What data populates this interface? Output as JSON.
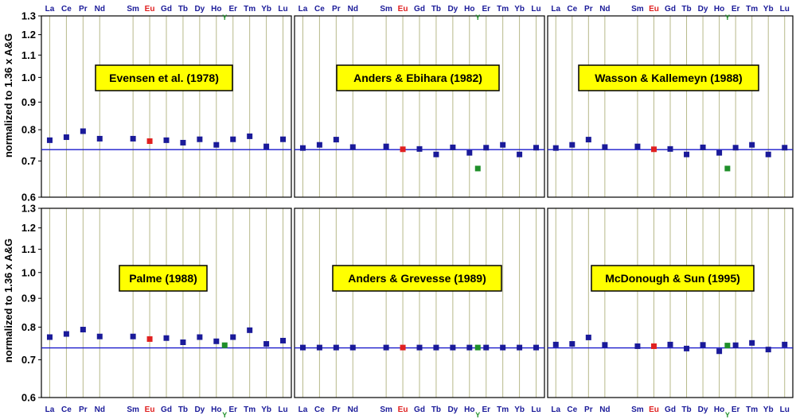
{
  "ylabel": "normalized to 1.36 x A&G",
  "ref_value": 0.735,
  "colors": {
    "frame": "#000000",
    "gridline": "#b7b98a",
    "reference_line": "#1a1acc",
    "marker_default": "#1a1a99",
    "marker_eu": "#e02020",
    "marker_y": "#1f8f2a",
    "tick_label": "#1a1a99",
    "eu_label": "#e02020",
    "y_label": "#1f8f2a",
    "title_box_fill": "#ffff00",
    "title_box_border": "#000000"
  },
  "chart_data": [
    {
      "type": "scatter",
      "title": "Evensen et al. (1978)",
      "categories": [
        "La",
        "Ce",
        "Pr",
        "Nd",
        "Sm",
        "Eu",
        "Gd",
        "Tb",
        "Dy",
        "Ho",
        "Er",
        "Tm",
        "Yb",
        "Lu"
      ],
      "values": [
        0.765,
        0.775,
        0.795,
        0.77,
        0.77,
        0.762,
        0.765,
        0.757,
        0.768,
        0.75,
        0.768,
        0.778,
        0.745,
        0.768
      ],
      "y_marker": null,
      "ylim": [
        0.6,
        1.3
      ],
      "yscale": "log",
      "yticks": [
        0.6,
        0.7,
        0.8,
        0.9,
        1.0,
        1.1,
        1.2,
        1.3
      ],
      "ytick_labels": [
        "0.6",
        "0.7",
        "0.8",
        "0.9",
        "1.0",
        "1.1",
        "1.2",
        "1.3"
      ],
      "reference_line": 0.735,
      "grid": true,
      "xlabel_position": "top"
    },
    {
      "type": "scatter",
      "title": "Anders & Ebihara (1982)",
      "categories": [
        "La",
        "Ce",
        "Pr",
        "Nd",
        "Sm",
        "Eu",
        "Gd",
        "Tb",
        "Dy",
        "Ho",
        "Er",
        "Tm",
        "Yb",
        "Lu"
      ],
      "values": [
        0.74,
        0.75,
        0.767,
        0.743,
        0.745,
        0.736,
        0.737,
        0.72,
        0.742,
        0.725,
        0.741,
        0.75,
        0.72,
        0.741
      ],
      "y_marker": 0.678,
      "ylim": [
        0.6,
        1.3
      ],
      "yscale": "log",
      "yticks": [
        0.6,
        0.7,
        0.8,
        0.9,
        1.0,
        1.1,
        1.2,
        1.3
      ],
      "ytick_labels": [
        "0.6",
        "0.7",
        "0.8",
        "0.9",
        "1.0",
        "1.1",
        "1.2",
        "1.3"
      ],
      "reference_line": 0.735,
      "grid": true,
      "xlabel_position": "top"
    },
    {
      "type": "scatter",
      "title": "Wasson & Kallemeyn (1988)",
      "categories": [
        "La",
        "Ce",
        "Pr",
        "Nd",
        "Sm",
        "Eu",
        "Gd",
        "Tb",
        "Dy",
        "Ho",
        "Er",
        "Tm",
        "Yb",
        "Lu"
      ],
      "values": [
        0.74,
        0.75,
        0.767,
        0.743,
        0.745,
        0.736,
        0.737,
        0.72,
        0.742,
        0.725,
        0.741,
        0.75,
        0.72,
        0.741
      ],
      "y_marker": 0.678,
      "ylim": [
        0.6,
        1.3
      ],
      "yscale": "log",
      "yticks": [
        0.6,
        0.7,
        0.8,
        0.9,
        1.0,
        1.1,
        1.2,
        1.3
      ],
      "ytick_labels": [
        "0.6",
        "0.7",
        "0.8",
        "0.9",
        "1.0",
        "1.1",
        "1.2",
        "1.3"
      ],
      "reference_line": 0.735,
      "grid": true,
      "xlabel_position": "top"
    },
    {
      "type": "scatter",
      "title": "Palme (1988)",
      "categories": [
        "La",
        "Ce",
        "Pr",
        "Nd",
        "Sm",
        "Eu",
        "Gd",
        "Tb",
        "Dy",
        "Ho",
        "Er",
        "Tm",
        "Yb",
        "Lu"
      ],
      "values": [
        0.768,
        0.778,
        0.792,
        0.77,
        0.77,
        0.762,
        0.765,
        0.752,
        0.768,
        0.755,
        0.768,
        0.79,
        0.747,
        0.757
      ],
      "y_marker": 0.743,
      "ylim": [
        0.6,
        1.3
      ],
      "yscale": "log",
      "yticks": [
        0.6,
        0.7,
        0.8,
        0.9,
        1.0,
        1.1,
        1.2,
        1.3
      ],
      "ytick_labels": [
        "0.6",
        "0.7",
        "0.8",
        "0.9",
        "1.0",
        "1.1",
        "1.2",
        "1.3"
      ],
      "reference_line": 0.735,
      "grid": true,
      "xlabel_position": "bottom"
    },
    {
      "type": "scatter",
      "title": "Anders & Grevesse (1989)",
      "categories": [
        "La",
        "Ce",
        "Pr",
        "Nd",
        "Sm",
        "Eu",
        "Gd",
        "Tb",
        "Dy",
        "Ho",
        "Er",
        "Tm",
        "Yb",
        "Lu"
      ],
      "values": [
        0.736,
        0.736,
        0.736,
        0.736,
        0.736,
        0.736,
        0.736,
        0.736,
        0.736,
        0.736,
        0.736,
        0.736,
        0.736,
        0.736
      ],
      "y_marker": 0.736,
      "ylim": [
        0.6,
        1.3
      ],
      "yscale": "log",
      "yticks": [
        0.6,
        0.7,
        0.8,
        0.9,
        1.0,
        1.1,
        1.2,
        1.3
      ],
      "ytick_labels": [
        "0.6",
        "0.7",
        "0.8",
        "0.9",
        "1.0",
        "1.1",
        "1.2",
        "1.3"
      ],
      "reference_line": 0.735,
      "grid": true,
      "xlabel_position": "bottom"
    },
    {
      "type": "scatter",
      "title": "McDonough & Sun (1995)",
      "categories": [
        "La",
        "Ce",
        "Pr",
        "Nd",
        "Sm",
        "Eu",
        "Gd",
        "Tb",
        "Dy",
        "Ho",
        "Er",
        "Tm",
        "Yb",
        "Lu"
      ],
      "values": [
        0.745,
        0.747,
        0.767,
        0.744,
        0.74,
        0.74,
        0.745,
        0.733,
        0.744,
        0.725,
        0.743,
        0.75,
        0.73,
        0.745
      ],
      "y_marker": 0.742,
      "ylim": [
        0.6,
        1.3
      ],
      "yscale": "log",
      "yticks": [
        0.6,
        0.7,
        0.8,
        0.9,
        1.0,
        1.1,
        1.2,
        1.3
      ],
      "ytick_labels": [
        "0.6",
        "0.7",
        "0.8",
        "0.9",
        "1.0",
        "1.1",
        "1.2",
        "1.3"
      ],
      "reference_line": 0.735,
      "grid": true,
      "xlabel_position": "bottom"
    }
  ],
  "y_marker_label": "Y"
}
